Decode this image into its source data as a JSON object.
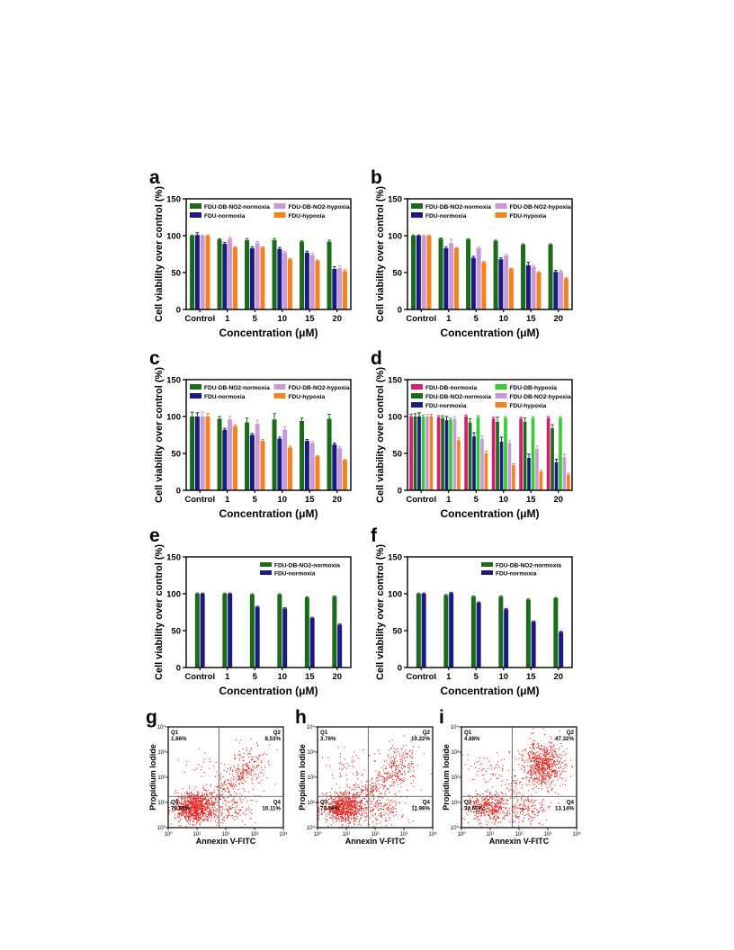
{
  "colors": {
    "fdu_db_no2_normoxia": "#1b6b1b",
    "fdu_db_no2_hypoxia": "#c99ad6",
    "fdu_normoxia": "#1a1a80",
    "fdu_hypoxia": "#f5821f",
    "fdu_db_normoxia": "#d81b6e",
    "fdu_db_hypoxia": "#33cc33",
    "flow_dots": "#e8201c"
  },
  "chart_data": [
    {
      "panel": "a",
      "type": "bar",
      "ylabel": "Cell viability over control (%)",
      "xlabel": "Concentration (μM)",
      "categories": [
        "Control",
        "1",
        "5",
        "10",
        "15",
        "20"
      ],
      "ylim": [
        0,
        150
      ],
      "yticks": [
        0,
        50,
        100,
        150
      ],
      "legend_columns": 2,
      "series": [
        {
          "name": "FDU-DB-NO2-normoxia",
          "color_key": "fdu_db_no2_normoxia",
          "values": [
            100,
            95,
            94,
            94,
            92,
            92
          ],
          "errors": [
            1,
            1,
            2,
            2,
            1,
            2
          ]
        },
        {
          "name": "FDU-normoxia",
          "color_key": "fdu_normoxia",
          "values": [
            101,
            89,
            83,
            82,
            77,
            55
          ],
          "errors": [
            3,
            2,
            2,
            2,
            2,
            3
          ]
        },
        {
          "name": "FDU-DB-NO2-hypoxia",
          "color_key": "fdu_db_no2_hypoxia",
          "values": [
            100,
            96,
            90,
            77,
            74,
            56
          ],
          "errors": [
            1,
            2,
            2,
            2,
            2,
            3
          ]
        },
        {
          "name": "FDU-hypoxia",
          "color_key": "fdu_hypoxia",
          "values": [
            100,
            84,
            84,
            68,
            66,
            52
          ],
          "errors": [
            1,
            1,
            1,
            1,
            1,
            2
          ]
        }
      ]
    },
    {
      "panel": "b",
      "type": "bar",
      "ylabel": "Cell viability over control (%)",
      "xlabel": "Concentration (μM)",
      "categories": [
        "Control",
        "1",
        "5",
        "10",
        "15",
        "20"
      ],
      "ylim": [
        0,
        150
      ],
      "yticks": [
        0,
        50,
        100,
        150
      ],
      "legend_columns": 2,
      "series": [
        {
          "name": "FDU-DB-NO2-normoxia",
          "color_key": "fdu_db_no2_normoxia",
          "values": [
            100,
            96,
            95,
            93,
            88,
            88
          ],
          "errors": [
            1,
            1,
            1,
            1,
            1,
            1
          ]
        },
        {
          "name": "FDU-normoxia",
          "color_key": "fdu_normoxia",
          "values": [
            100,
            83,
            70,
            68,
            60,
            51
          ],
          "errors": [
            1,
            2,
            2,
            2,
            4,
            2
          ]
        },
        {
          "name": "FDU-DB-NO2-hypoxia",
          "color_key": "fdu_db_no2_hypoxia",
          "values": [
            100,
            90,
            83,
            73,
            58,
            51
          ],
          "errors": [
            1,
            5,
            2,
            2,
            2,
            2
          ]
        },
        {
          "name": "FDU-hypoxia",
          "color_key": "fdu_hypoxia",
          "values": [
            100,
            83,
            64,
            55,
            50,
            42
          ],
          "errors": [
            1,
            1,
            1,
            1,
            1,
            1
          ]
        }
      ]
    },
    {
      "panel": "c",
      "type": "bar",
      "ylabel": "Cell viability over control (%)",
      "xlabel": "Concentration (μM)",
      "categories": [
        "Control",
        "1",
        "5",
        "10",
        "15",
        "20"
      ],
      "ylim": [
        0,
        150
      ],
      "yticks": [
        0,
        50,
        100,
        150
      ],
      "legend_columns": 2,
      "series": [
        {
          "name": "FDU-DB-NO2-normoxia",
          "color_key": "fdu_db_no2_normoxia",
          "values": [
            100,
            97,
            92,
            96,
            94,
            97
          ],
          "errors": [
            6,
            3,
            6,
            8,
            4,
            6
          ]
        },
        {
          "name": "FDU-normoxia",
          "color_key": "fdu_normoxia",
          "values": [
            100,
            82,
            75,
            70,
            67,
            62
          ],
          "errors": [
            5,
            2,
            2,
            2,
            2,
            2
          ]
        },
        {
          "name": "FDU-DB-NO2-hypoxia",
          "color_key": "fdu_db_no2_hypoxia",
          "values": [
            100,
            96,
            90,
            82,
            64,
            57
          ],
          "errors": [
            6,
            4,
            5,
            4,
            2,
            2
          ]
        },
        {
          "name": "FDU-hypoxia",
          "color_key": "fdu_hypoxia",
          "values": [
            100,
            87,
            67,
            58,
            46,
            41
          ],
          "errors": [
            4,
            2,
            2,
            2,
            1,
            1
          ]
        }
      ]
    },
    {
      "panel": "d",
      "type": "bar",
      "ylabel": "Cell viability over control (%)",
      "xlabel": "Concentration (μM)",
      "categories": [
        "Control",
        "1",
        "5",
        "10",
        "15",
        "20"
      ],
      "ylim": [
        0,
        150
      ],
      "yticks": [
        0,
        50,
        100,
        150
      ],
      "legend_columns": 2,
      "series": [
        {
          "name": "FDU-DB-normoxia",
          "color_key": "fdu_db_normoxia",
          "values": [
            100,
            99,
            100,
            97,
            97,
            98
          ],
          "errors": [
            3,
            2,
            2,
            2,
            2,
            2
          ]
        },
        {
          "name": "FDU-DB-NO2-normoxia",
          "color_key": "fdu_db_no2_normoxia",
          "values": [
            100,
            98,
            92,
            93,
            93,
            84
          ],
          "errors": [
            4,
            3,
            5,
            6,
            5,
            5
          ]
        },
        {
          "name": "FDU-normoxia",
          "color_key": "fdu_normoxia",
          "values": [
            100,
            95,
            73,
            66,
            44,
            38
          ],
          "errors": [
            5,
            5,
            5,
            6,
            5,
            4
          ]
        },
        {
          "name": "FDU-DB-hypoxia",
          "color_key": "fdu_db_hypoxia",
          "values": [
            100,
            96,
            99,
            98,
            98,
            98
          ],
          "errors": [
            2,
            2,
            2,
            2,
            2,
            2
          ]
        },
        {
          "name": "FDU-DB-NO2-hypoxia",
          "color_key": "fdu_db_no2_hypoxia",
          "values": [
            100,
            97,
            70,
            64,
            56,
            45
          ],
          "errors": [
            3,
            3,
            4,
            4,
            4,
            4
          ]
        },
        {
          "name": "FDU-hypoxia",
          "color_key": "fdu_hypoxia",
          "values": [
            100,
            68,
            50,
            34,
            25,
            21
          ],
          "errors": [
            3,
            3,
            3,
            2,
            2,
            2
          ]
        }
      ]
    },
    {
      "panel": "e",
      "type": "bar",
      "ylabel": "Cell viability over control (%)",
      "xlabel": "Concentration (μM)",
      "categories": [
        "Control",
        "1",
        "5",
        "10",
        "15",
        "20"
      ],
      "ylim": [
        0,
        150
      ],
      "yticks": [
        0,
        50,
        100,
        150
      ],
      "legend_columns": 1,
      "series": [
        {
          "name": "FDU-DB-NO2-normoxia",
          "color_key": "fdu_db_no2_normoxia",
          "values": [
            100,
            100,
            99,
            99,
            95,
            96
          ],
          "errors": [
            1,
            1,
            1,
            1,
            1,
            1
          ]
        },
        {
          "name": "FDU-normoxia",
          "color_key": "fdu_normoxia",
          "values": [
            100,
            100,
            82,
            80,
            67,
            58
          ],
          "errors": [
            1,
            1,
            1,
            1,
            1,
            1
          ]
        }
      ]
    },
    {
      "panel": "f",
      "type": "bar",
      "ylabel": "Cell viability over control (%)",
      "xlabel": "Concentration (μM)",
      "categories": [
        "Control",
        "1",
        "5",
        "10",
        "15",
        "20"
      ],
      "ylim": [
        0,
        150
      ],
      "yticks": [
        0,
        50,
        100,
        150
      ],
      "legend_columns": 1,
      "series": [
        {
          "name": "FDU-DB-NO2-normoxia",
          "color_key": "fdu_db_no2_normoxia",
          "values": [
            100,
            98,
            96,
            96,
            92,
            94
          ],
          "errors": [
            1,
            1,
            1,
            1,
            1,
            1
          ]
        },
        {
          "name": "FDU-normoxia",
          "color_key": "fdu_normoxia",
          "values": [
            100,
            101,
            88,
            79,
            62,
            48
          ],
          "errors": [
            1,
            1,
            1,
            1,
            1,
            1
          ]
        }
      ]
    },
    {
      "panel": "g",
      "type": "scatter",
      "xlabel": "Annexin V-FITC",
      "ylabel": "Propidium Iodide",
      "xlim": [
        1,
        10000
      ],
      "ylim": [
        1,
        10000
      ],
      "log_scale": true,
      "tick_labels": [
        "10⁰",
        "10¹",
        "10²",
        "10³",
        "10⁴"
      ],
      "quadrants": {
        "Q1": "1.86%",
        "Q2": "8.53%",
        "Q3": "79.50%",
        "Q4": "10.11%"
      }
    },
    {
      "panel": "h",
      "type": "scatter",
      "xlabel": "Annexin V-FITC",
      "ylabel": "Propidium Iodide",
      "xlim": [
        1,
        10000
      ],
      "ylim": [
        1,
        10000
      ],
      "log_scale": true,
      "tick_labels": [
        "10⁰",
        "10¹",
        "10²",
        "10³",
        "10⁴"
      ],
      "quadrants": {
        "Q1": "3.76%",
        "Q2": "10.22%",
        "Q3": "74.06%",
        "Q4": "11.96%"
      }
    },
    {
      "panel": "i",
      "type": "scatter",
      "xlabel": "Annexin V-FITC",
      "ylabel": "Propidium Iodide",
      "xlim": [
        1,
        10000
      ],
      "ylim": [
        1,
        10000
      ],
      "log_scale": true,
      "tick_labels": [
        "10⁰",
        "10¹",
        "10²",
        "10³",
        "10⁴"
      ],
      "quadrants": {
        "Q1": "4.88%",
        "Q2": "47.32%",
        "Q3": "34.66%",
        "Q4": "13.14%"
      }
    }
  ]
}
